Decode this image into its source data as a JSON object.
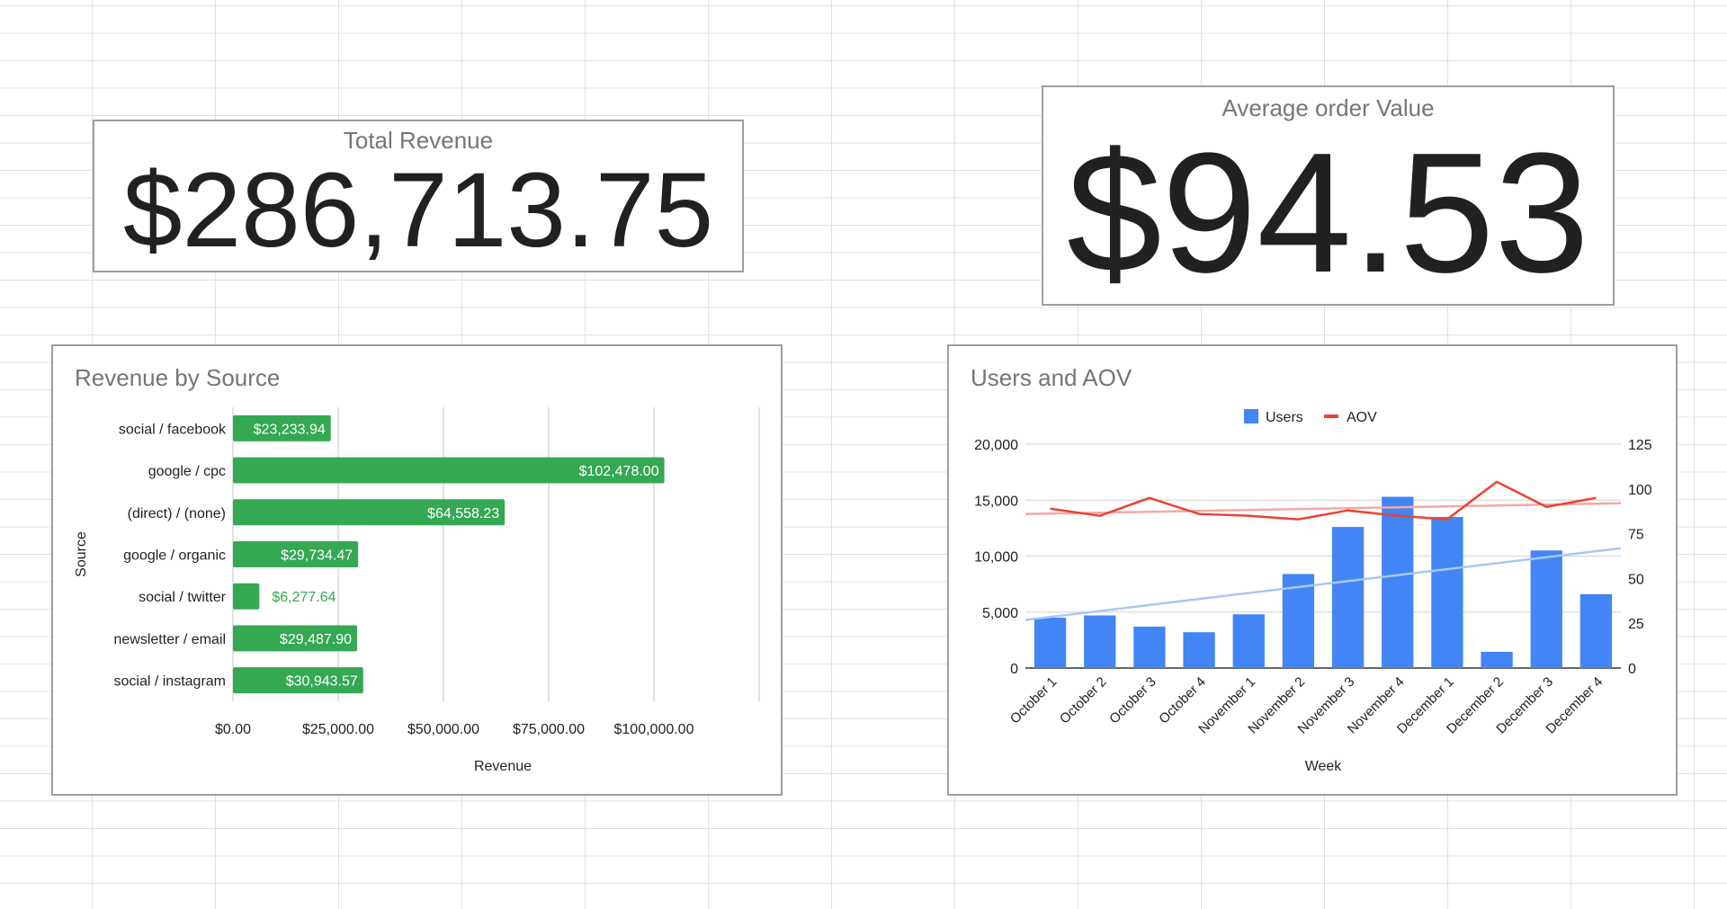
{
  "scorecards": {
    "total_revenue": {
      "title": "Total Revenue",
      "value": "$286,713.75"
    },
    "aov": {
      "title": "Average order Value",
      "value": "$94.53"
    }
  },
  "colors": {
    "bar_green": "#34a853",
    "bar_blue": "#4285f4",
    "line_red": "#ea4335",
    "trend_red": "#f4a9a2",
    "trend_blue": "#a9c7f6",
    "grid": "#d9d9d9",
    "title_gray": "#757575",
    "text": "#222222"
  },
  "chart_data": [
    {
      "type": "bar",
      "orientation": "horizontal",
      "title": "Revenue by Source",
      "xlabel": "Revenue",
      "ylabel": "Source",
      "categories": [
        "social / facebook",
        "google / cpc",
        "(direct) / (none)",
        "google / organic",
        "social / twitter",
        "newsletter / email",
        "social / instagram"
      ],
      "values": [
        23233.94,
        102478.0,
        64558.23,
        29734.47,
        6277.64,
        29487.9,
        30943.57
      ],
      "data_labels": [
        "$23,233.94",
        "$102,478.00",
        "$64,558.23",
        "$29,734.47",
        "$6,277.64",
        "$29,487.90",
        "$30,943.57"
      ],
      "xlim": [
        0,
        125000
      ],
      "xticks": [
        0,
        25000,
        50000,
        75000,
        100000
      ],
      "xtick_labels": [
        "$0.00",
        "$25,000.00",
        "$50,000.00",
        "$75,000.00",
        "$100,000.00"
      ],
      "grid": true
    },
    {
      "type": "bar+line",
      "title": "Users and AOV",
      "xlabel": "Week",
      "legend_position": "top",
      "categories": [
        "October 1",
        "October 2",
        "October 3",
        "October 4",
        "November 1",
        "November 2",
        "November 3",
        "November 4",
        "December 1",
        "December 2",
        "December 3",
        "December 4"
      ],
      "series": [
        {
          "name": "Users",
          "type": "bar",
          "axis": "left",
          "values": [
            4500,
            4700,
            3700,
            3200,
            4800,
            8400,
            12600,
            15300,
            13500,
            1450,
            10500,
            6600
          ]
        },
        {
          "name": "AOV",
          "type": "line",
          "axis": "right",
          "values": [
            89,
            85,
            95,
            86,
            85,
            83,
            88,
            85,
            83,
            104,
            90,
            95
          ]
        }
      ],
      "trendlines": {
        "users": [
          4300,
          10700
        ],
        "aov": [
          86,
          92
        ]
      },
      "ylim_left": [
        0,
        20000
      ],
      "yticks_left": [
        "0",
        "5,000",
        "10,000",
        "15,000",
        "20,000"
      ],
      "ylim_right": [
        0,
        125
      ],
      "yticks_right": [
        "0",
        "25",
        "50",
        "75",
        "100",
        "125"
      ],
      "grid": true
    }
  ]
}
